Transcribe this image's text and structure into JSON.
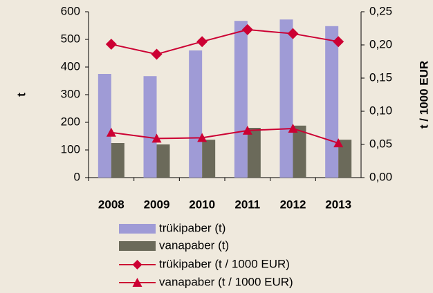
{
  "chart_data": {
    "type": "bar_line",
    "categories": [
      "2008",
      "2009",
      "2010",
      "2011",
      "2012",
      "2013"
    ],
    "ylabel": "t",
    "y2label": "t / 1000 EUR",
    "ylim": [
      0,
      600
    ],
    "yticks": [
      0,
      100,
      200,
      300,
      400,
      500,
      600
    ],
    "y2lim": [
      0,
      0.25
    ],
    "y2ticks": [
      {
        "value": 0,
        "label": "0,00"
      },
      {
        "value": 0.05,
        "label": "0,05"
      },
      {
        "value": 0.1,
        "label": "0,10"
      },
      {
        "value": 0.15,
        "label": "0,15"
      },
      {
        "value": 0.2,
        "label": "0,20"
      },
      {
        "value": 0.25,
        "label": "0,25"
      }
    ],
    "series": [
      {
        "name": "trükipaber (t)",
        "type": "bar",
        "color": "#9f9bd6",
        "values": [
          375,
          367,
          460,
          567,
          572,
          548
        ]
      },
      {
        "name": "vanapaber (t)",
        "type": "bar",
        "color": "#6b6a5a",
        "values": [
          125,
          120,
          137,
          180,
          188,
          137
        ]
      },
      {
        "name": "trükipaber (t / 1000 EUR)",
        "type": "line",
        "marker": "diamond",
        "axis": "y2",
        "color": "#cc0033",
        "values": [
          0.201,
          0.186,
          0.205,
          0.223,
          0.217,
          0.205
        ]
      },
      {
        "name": "vanapaber (t / 1000 EUR)",
        "type": "line",
        "marker": "triangle",
        "axis": "y2",
        "color": "#cc0033",
        "values": [
          0.068,
          0.059,
          0.06,
          0.071,
          0.074,
          0.052
        ]
      }
    ],
    "legend": "bottom"
  }
}
